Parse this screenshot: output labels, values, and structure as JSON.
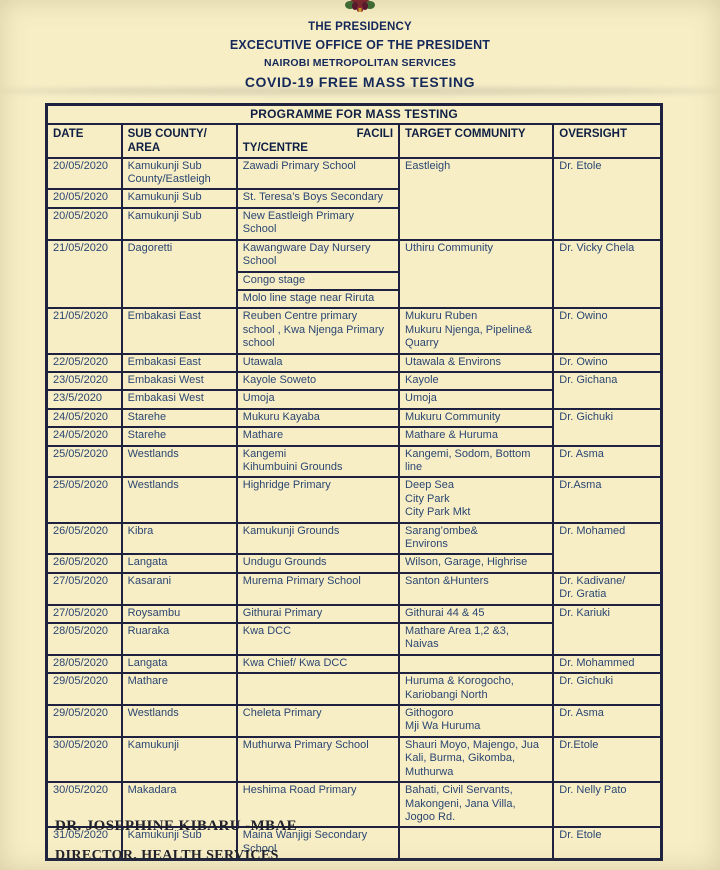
{
  "page": {
    "background_color": "#f7eec6",
    "border_color": "#1e2240",
    "text_color": "#2b4672"
  },
  "letterhead": {
    "logo_icon": "kenya-coat-of-arms-icon",
    "line1": "THE PRESIDENCY",
    "line2": "EXCECUTIVE OFFICE OF THE PRESIDENT",
    "line3": "NAIROBI METROPOLITAN SERVICES",
    "line4": "COVID-19 FREE MASS TESTING"
  },
  "table": {
    "title": "PROGRAMME FOR MASS TESTING",
    "columns": [
      {
        "label": "DATE"
      },
      {
        "label": "SUB COUNTY/\nAREA"
      },
      {
        "label_line1": "FACILI",
        "label_line2": "TY/CENTRE"
      },
      {
        "label": "TARGET COMMUNITY"
      },
      {
        "label": "OVERSIGHT"
      }
    ],
    "rows": [
      {
        "cells": [
          {
            "text": "20/05/2020"
          },
          {
            "text": "Kamukunji Sub\nCounty/Eastleigh"
          },
          {
            "text": "Zawadi Primary School"
          },
          {
            "text": "Eastleigh",
            "rowspan": 3
          },
          {
            "text": "Dr. Etole",
            "rowspan": 3
          }
        ]
      },
      {
        "cells": [
          {
            "text": "20/05/2020"
          },
          {
            "text": "Kamukunji Sub"
          },
          {
            "text": "St. Teresa’s Boys Secondary"
          }
        ]
      },
      {
        "cells": [
          {
            "text": "20/05/2020"
          },
          {
            "text": "Kamukunji Sub"
          },
          {
            "text": "New Eastleigh Primary\nSchool"
          }
        ]
      },
      {
        "cells": [
          {
            "text": "21/05/2020",
            "rowspan": 3
          },
          {
            "text": "Dagoretti",
            "rowspan": 3
          },
          {
            "text": "Kawangware Day Nursery\nSchool"
          },
          {
            "text": "Uthiru Community",
            "rowspan": 3
          },
          {
            "text": "Dr. Vicky Chela",
            "rowspan": 3
          }
        ]
      },
      {
        "cells": [
          {
            "text": "Congo stage"
          }
        ]
      },
      {
        "cells": [
          {
            "text": "Molo line stage near Riruta"
          }
        ]
      },
      {
        "cells": [
          {
            "text": "21/05/2020"
          },
          {
            "text": "Embakasi East"
          },
          {
            "text": "Reuben Centre primary\nschool , Kwa Njenga Primary\nschool"
          },
          {
            "text": "Mukuru Ruben\nMukuru Njenga, Pipeline&\nQuarry"
          },
          {
            "text": "Dr. Owino"
          }
        ]
      },
      {
        "cells": [
          {
            "text": "22/05/2020"
          },
          {
            "text": "Embakasi East"
          },
          {
            "text": "Utawala"
          },
          {
            "text": "Utawala & Environs"
          },
          {
            "text": "Dr. Owino"
          }
        ]
      },
      {
        "cells": [
          {
            "text": "23/05/2020"
          },
          {
            "text": "Embakasi West"
          },
          {
            "text": "Kayole Soweto"
          },
          {
            "text": "Kayole"
          },
          {
            "text": "Dr. Gichana",
            "rowspan": 2
          }
        ]
      },
      {
        "cells": [
          {
            "text": "23/5/2020"
          },
          {
            "text": "Embakasi West"
          },
          {
            "text": "Umoja"
          },
          {
            "text": "Umoja"
          }
        ]
      },
      {
        "cells": [
          {
            "text": "24/05/2020"
          },
          {
            "text": "Starehe"
          },
          {
            "text": "Mukuru Kayaba"
          },
          {
            "text": "Mukuru Community"
          },
          {
            "text": "Dr. Gichuki",
            "rowspan": 2
          }
        ]
      },
      {
        "cells": [
          {
            "text": "24/05/2020"
          },
          {
            "text": "Starehe"
          },
          {
            "text": "Mathare"
          },
          {
            "text": "Mathare & Huruma"
          }
        ]
      },
      {
        "cells": [
          {
            "text": "25/05/2020"
          },
          {
            "text": "Westlands"
          },
          {
            "text": "Kangemi\nKihumbuini Grounds"
          },
          {
            "text": "Kangemi, Sodom, Bottom\nline"
          },
          {
            "text": "Dr. Asma"
          }
        ]
      },
      {
        "cells": [
          {
            "text": "25/05/2020"
          },
          {
            "text": "Westlands"
          },
          {
            "text": "Highridge Primary"
          },
          {
            "text": "Deep Sea\nCity Park\nCity Park Mkt"
          },
          {
            "text": "Dr.Asma"
          }
        ]
      },
      {
        "cells": [
          {
            "text": "26/05/2020"
          },
          {
            "text": "Kibra"
          },
          {
            "text": "Kamukunji Grounds"
          },
          {
            "text": "Sarang’ombe&\nEnvirons"
          },
          {
            "text": "Dr. Mohamed",
            "rowspan": 2
          }
        ]
      },
      {
        "cells": [
          {
            "text": "26/05/2020"
          },
          {
            "text": "Langata"
          },
          {
            "text": "Undugu Grounds"
          },
          {
            "text": "Wilson, Garage, Highrise"
          }
        ]
      },
      {
        "cells": [
          {
            "text": "27/05/2020"
          },
          {
            "text": "Kasarani"
          },
          {
            "text": "Murema Primary School"
          },
          {
            "text": "Santon &Hunters"
          },
          {
            "text": "Dr. Kadivane/\nDr. Gratia"
          }
        ]
      },
      {
        "cells": [
          {
            "text": "27/05/2020"
          },
          {
            "text": "Roysambu"
          },
          {
            "text": "Githurai Primary"
          },
          {
            "text": "Githurai 44 & 45"
          },
          {
            "text": "Dr. Kariuki",
            "rowspan": 2
          }
        ]
      },
      {
        "cells": [
          {
            "text": "28/05/2020"
          },
          {
            "text": "Ruaraka"
          },
          {
            "text": "Kwa DCC"
          },
          {
            "text": "Mathare Area 1,2 &3,\nNaivas"
          }
        ]
      },
      {
        "cells": [
          {
            "text": "28/05/2020"
          },
          {
            "text": "Langata"
          },
          {
            "text": "Kwa Chief/ Kwa DCC"
          },
          {
            "text": ""
          },
          {
            "text": "Dr. Mohammed"
          }
        ]
      },
      {
        "cells": [
          {
            "text": "29/05/2020"
          },
          {
            "text": "Mathare"
          },
          {
            "text": ""
          },
          {
            "text": "Huruma & Korogocho,\nKariobangi North"
          },
          {
            "text": "Dr. Gichuki"
          }
        ]
      },
      {
        "cells": [
          {
            "text": "29/05/2020"
          },
          {
            "text": "Westlands"
          },
          {
            "text": "Cheleta Primary"
          },
          {
            "text": "Githogoro\nMji Wa Huruma"
          },
          {
            "text": "Dr. Asma"
          }
        ]
      },
      {
        "cells": [
          {
            "text": "30/05/2020"
          },
          {
            "text": "Kamukunji"
          },
          {
            "text": "Muthurwa Primary School"
          },
          {
            "text": "Shauri Moyo, Majengo, Jua\nKali, Burma, Gikomba,\nMuthurwa"
          },
          {
            "text": "Dr.Etole"
          }
        ]
      },
      {
        "cells": [
          {
            "text": "30/05/2020"
          },
          {
            "text": "Makadara"
          },
          {
            "text": "Heshima Road Primary"
          },
          {
            "text": "Bahati, Civil Servants,\nMakongeni, Jana Villa,\nJogoo Rd."
          },
          {
            "text": "Dr. Nelly Pato"
          }
        ]
      },
      {
        "cells": [
          {
            "text": "31/05/2020"
          },
          {
            "text": "Kamukunji Sub"
          },
          {
            "text": "Maina Wanjigi Secondary\nSchool"
          },
          {
            "text": ""
          },
          {
            "text": "Dr. Etole"
          }
        ]
      }
    ]
  },
  "footer": {
    "name": "DR. JOSEPHINE KIBARU -MBAE",
    "role": "DIRECTOR, HEALTH SERVICES"
  }
}
